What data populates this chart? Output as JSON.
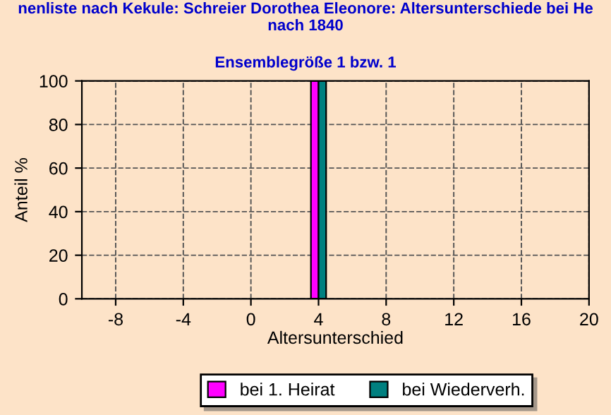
{
  "chart_data": {
    "type": "bar",
    "title": "nenliste nach Kekule: Schreier Dorothea Eleonore: Altersunterschiede bei He\nnach 1840",
    "subtitle": "Ensemblegröße 1 bzw. 1",
    "xlabel": "Altersunterschied",
    "ylabel": "Anteil %",
    "series": [
      {
        "name": "bei 1. Heirat",
        "color": "#ff00ff",
        "x": [
          4
        ],
        "values": [
          100
        ]
      },
      {
        "name": "bei Wiederverh.",
        "color": "#008080",
        "x": [
          4
        ],
        "values": [
          100
        ]
      }
    ],
    "xlim": [
      -10,
      20
    ],
    "xticks": [
      -8,
      -4,
      0,
      4,
      8,
      12,
      16,
      20
    ],
    "ylim": [
      0,
      100
    ],
    "yticks": [
      0,
      20,
      40,
      60,
      80,
      100
    ],
    "grid": true,
    "legend": "bottom"
  }
}
